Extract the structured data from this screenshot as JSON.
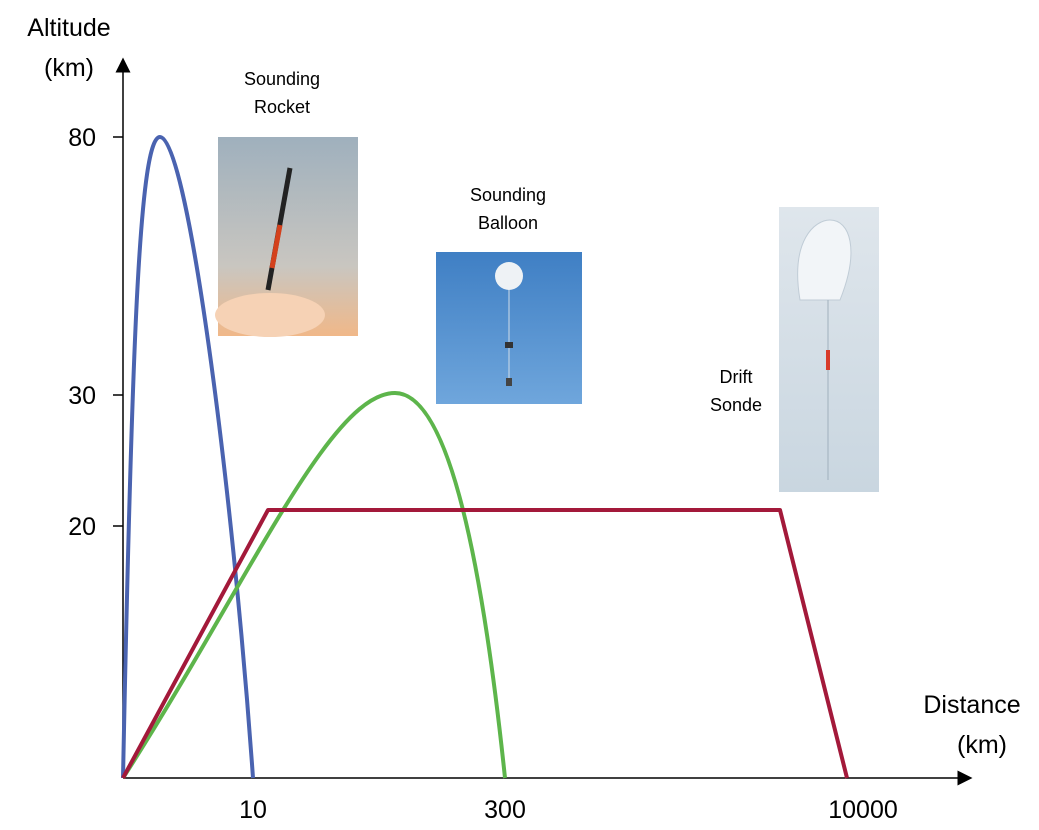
{
  "y_axis": {
    "label": [
      "Altitude",
      "(km)"
    ],
    "ticks": [
      "80",
      "30",
      "20"
    ]
  },
  "x_axis": {
    "label": [
      "Distance",
      "(km)"
    ],
    "ticks": [
      "10",
      "300",
      "10000"
    ]
  },
  "annotations": [
    {
      "lines": [
        "Sounding",
        "Rocket"
      ]
    },
    {
      "lines": [
        "Sounding",
        "Balloon"
      ]
    },
    {
      "lines": [
        "Drift",
        "Sonde"
      ]
    }
  ]
}
